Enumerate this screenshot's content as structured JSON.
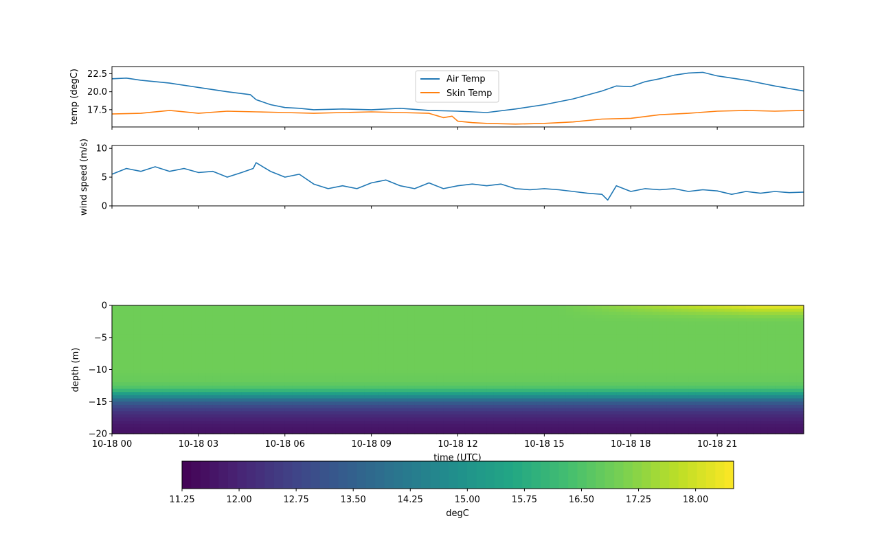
{
  "chart_data": [
    {
      "type": "line",
      "ylabel": "temp (degC)",
      "yticks": [
        17.5,
        20.0,
        22.5
      ],
      "ytick_labels": [
        "17.5",
        "20.0",
        "22.5"
      ],
      "ylim": [
        15.1,
        23.5
      ],
      "xlim_hours": [
        0,
        24
      ],
      "legend": {
        "placement": "top-center",
        "entries": [
          "Air Temp",
          "Skin Temp"
        ]
      },
      "series": [
        {
          "name": "Air Temp",
          "color": "#1f77b4",
          "x_hours": [
            0,
            0.5,
            1,
            2,
            3,
            4,
            4.8,
            5,
            5.5,
            6,
            6.5,
            7,
            8,
            9,
            10,
            11,
            12,
            13,
            14,
            15,
            16,
            17,
            17.5,
            18,
            18.5,
            19,
            19.5,
            20,
            20.5,
            21,
            22,
            23,
            24
          ],
          "values": [
            21.8,
            21.9,
            21.6,
            21.2,
            20.6,
            20.0,
            19.6,
            18.9,
            18.2,
            17.8,
            17.7,
            17.5,
            17.6,
            17.5,
            17.7,
            17.4,
            17.3,
            17.1,
            17.6,
            18.2,
            19.0,
            20.1,
            20.8,
            20.7,
            21.4,
            21.8,
            22.3,
            22.6,
            22.7,
            22.2,
            21.6,
            20.8,
            20.1
          ]
        },
        {
          "name": "Skin Temp",
          "color": "#ff7f0e",
          "x_hours": [
            0,
            1,
            2,
            3,
            4,
            5,
            6,
            7,
            8,
            9,
            10,
            11,
            11.5,
            11.8,
            12,
            12.5,
            13,
            14,
            15,
            16,
            17,
            18,
            19,
            20,
            21,
            22,
            23,
            24
          ],
          "values": [
            16.9,
            17.0,
            17.4,
            17.0,
            17.3,
            17.2,
            17.1,
            17.0,
            17.1,
            17.2,
            17.1,
            17.0,
            16.4,
            16.6,
            15.9,
            15.7,
            15.6,
            15.5,
            15.6,
            15.8,
            16.2,
            16.3,
            16.8,
            17.0,
            17.3,
            17.4,
            17.3,
            17.4
          ]
        }
      ]
    },
    {
      "type": "line",
      "ylabel": "wind speed (m/s)",
      "yticks": [
        0,
        5,
        10
      ],
      "ytick_labels": [
        "0",
        "5",
        "10"
      ],
      "ylim": [
        0,
        10.5
      ],
      "xlim_hours": [
        0,
        24
      ],
      "series": [
        {
          "name": "",
          "color": "#1f77b4",
          "x_hours": [
            0,
            0.5,
            1,
            1.5,
            2,
            2.5,
            3,
            3.5,
            4,
            4.5,
            4.9,
            5,
            5.5,
            6,
            6.5,
            7,
            7.5,
            8,
            8.5,
            9,
            9.5,
            10,
            10.5,
            11,
            11.5,
            12,
            12.5,
            13,
            13.5,
            14,
            14.5,
            15,
            15.5,
            16,
            16.5,
            17,
            17.2,
            17.5,
            18,
            18.5,
            19,
            19.5,
            20,
            20.5,
            21,
            21.5,
            22,
            22.5,
            23,
            23.5,
            24
          ],
          "values": [
            5.5,
            6.5,
            6.0,
            6.8,
            6.0,
            6.5,
            5.8,
            6.0,
            5.0,
            5.8,
            6.5,
            7.5,
            6.0,
            5.0,
            5.5,
            3.8,
            3.0,
            3.5,
            3.0,
            4.0,
            4.5,
            3.5,
            3.0,
            4.0,
            3.0,
            3.5,
            3.8,
            3.5,
            3.8,
            3.0,
            2.8,
            3.0,
            2.8,
            2.5,
            2.2,
            2.0,
            1.0,
            3.5,
            2.5,
            3.0,
            2.8,
            3.0,
            2.5,
            2.8,
            2.6,
            2.0,
            2.5,
            2.2,
            2.5,
            2.3,
            2.4
          ]
        }
      ]
    },
    {
      "type": "heatmap",
      "ylabel": "depth (m)",
      "xlabel": "time (UTC)",
      "yticks": [
        0,
        -5,
        -10,
        -15,
        -20
      ],
      "ytick_labels": [
        "0",
        "−5",
        "−10",
        "−15",
        "−20"
      ],
      "ylim": [
        -20,
        0
      ],
      "xlim_hours": [
        0,
        24
      ],
      "xticks_hours": [
        0,
        3,
        6,
        9,
        12,
        15,
        18,
        21
      ],
      "xtick_labels": [
        "10-18 00",
        "10-18 03",
        "10-18 06",
        "10-18 09",
        "10-18 12",
        "10-18 15",
        "10-18 18",
        "10-18 21"
      ],
      "depth_profile": {
        "depths": [
          0,
          -1,
          -2,
          -5,
          -8,
          -10,
          -12,
          -13,
          -14,
          -15,
          -16,
          -17,
          -18,
          -19,
          -20
        ],
        "temps_degC": [
          16.9,
          16.9,
          16.9,
          16.9,
          16.9,
          16.9,
          16.8,
          16.4,
          15.0,
          13.5,
          12.7,
          12.2,
          11.9,
          11.7,
          11.6
        ]
      },
      "surface_warming": {
        "start_hour": 15.5,
        "peak_hour": 22.5,
        "peak_temp_degC": 18.4
      },
      "colorbar": {
        "label": "degC",
        "colormap": "viridis",
        "vmin": 11.25,
        "vmax": 18.5,
        "ticks": [
          11.25,
          12.0,
          12.75,
          13.5,
          14.25,
          15.0,
          15.75,
          16.5,
          17.25,
          18.0
        ],
        "tick_labels": [
          "11.25",
          "12.00",
          "12.75",
          "13.50",
          "14.25",
          "15.00",
          "15.75",
          "16.50",
          "17.25",
          "18.00"
        ]
      }
    }
  ]
}
